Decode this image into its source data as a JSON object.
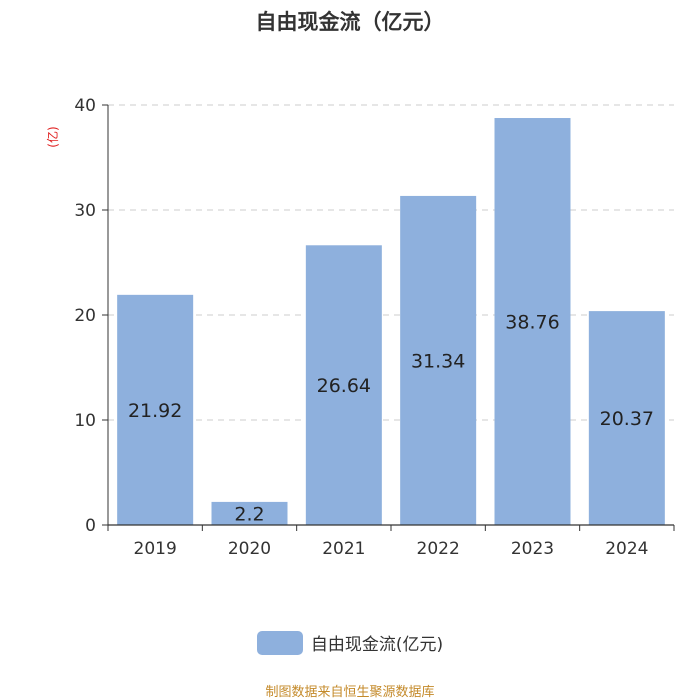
{
  "chart_data": {
    "type": "bar",
    "title": "自由现金流（亿元）",
    "ylabel": "(亿)",
    "categories": [
      "2019",
      "2020",
      "2021",
      "2022",
      "2023",
      "2024"
    ],
    "series": [
      {
        "name": "自由现金流(亿元)",
        "values": [
          21.92,
          2.2,
          26.64,
          31.34,
          38.76,
          20.37
        ]
      }
    ],
    "value_labels": [
      "21.92",
      "2.2",
      "26.64",
      "31.34",
      "38.76",
      "20.37"
    ],
    "ylim": [
      0,
      40
    ],
    "yticks": [
      0,
      10,
      20,
      30,
      40
    ],
    "grid": "horizontal dashed",
    "legend_position": "bottom-center",
    "bar_color": "#8eb0dd"
  },
  "source": "制图数据来自恒生聚源数据库",
  "colors": {
    "ylabel": "#e02020",
    "source": "#c48a2a"
  }
}
